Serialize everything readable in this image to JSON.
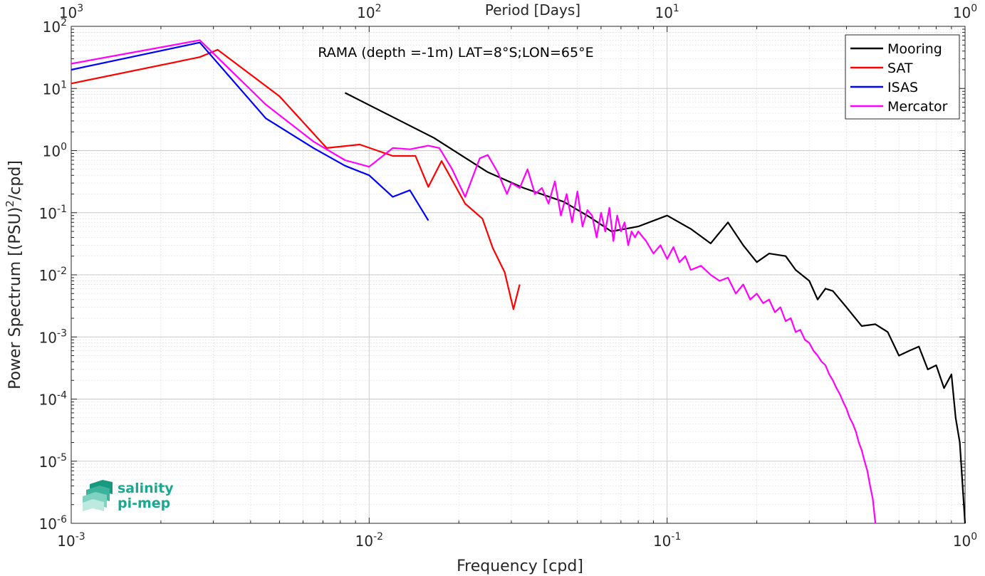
{
  "chart_data": {
    "type": "line",
    "title": "RAMA (depth =-1m) LAT=8°S;LON=65°E",
    "xlabel": "Frequency [cpd]",
    "ylabel_main": "Power Spectrum [(PSU)",
    "ylabel_sup": "2",
    "ylabel_tail": "/cpd]",
    "top_xlabel": "Period [Days]",
    "x_scale": "log",
    "y_scale": "log",
    "xlim": [
      0.001,
      1
    ],
    "ylim": [
      1e-06,
      100
    ],
    "grid": true,
    "legend_position": "top-right",
    "x_ticks": [
      {
        "v": 0.001,
        "base": "10",
        "exp": "-3"
      },
      {
        "v": 0.01,
        "base": "10",
        "exp": "-2"
      },
      {
        "v": 0.1,
        "base": "10",
        "exp": "-1"
      },
      {
        "v": 1,
        "base": "10",
        "exp": "0"
      }
    ],
    "y_ticks": [
      {
        "v": 100,
        "base": "10",
        "exp": "2"
      },
      {
        "v": 10,
        "base": "10",
        "exp": "1"
      },
      {
        "v": 1,
        "base": "10",
        "exp": "0"
      },
      {
        "v": 0.1,
        "base": "10",
        "exp": "-1"
      },
      {
        "v": 0.01,
        "base": "10",
        "exp": "-2"
      },
      {
        "v": 0.001,
        "base": "10",
        "exp": "-3"
      },
      {
        "v": 0.0001,
        "base": "10",
        "exp": "-4"
      },
      {
        "v": 1e-05,
        "base": "10",
        "exp": "-5"
      },
      {
        "v": 1e-06,
        "base": "10",
        "exp": "-6"
      }
    ],
    "top_ticks": [
      {
        "v": 0.001,
        "base": "10",
        "exp": "3"
      },
      {
        "v": 0.01,
        "base": "10",
        "exp": "2"
      },
      {
        "v": 0.1,
        "base": "10",
        "exp": "1"
      },
      {
        "v": 1,
        "base": "10",
        "exp": "0"
      }
    ],
    "series": [
      {
        "name": "Mooring",
        "color": "#000000",
        "x": [
          0.0083,
          0.0165,
          0.025,
          0.033,
          0.045,
          0.055,
          0.065,
          0.08,
          0.1,
          0.12,
          0.14,
          0.16,
          0.18,
          0.2,
          0.22,
          0.25,
          0.27,
          0.3,
          0.32,
          0.34,
          0.36,
          0.4,
          0.45,
          0.5,
          0.55,
          0.6,
          0.65,
          0.7,
          0.75,
          0.8,
          0.85,
          0.9,
          0.93,
          0.96,
          1.0
        ],
        "y": [
          8.5,
          1.6,
          0.45,
          0.25,
          0.15,
          0.085,
          0.05,
          0.06,
          0.09,
          0.055,
          0.032,
          0.07,
          0.03,
          0.016,
          0.022,
          0.02,
          0.012,
          0.008,
          0.004,
          0.006,
          0.0055,
          0.003,
          0.0015,
          0.0016,
          0.0012,
          0.0005,
          0.0006,
          0.0007,
          0.0003,
          0.00035,
          0.00015,
          0.00025,
          5e-05,
          2e-05,
          1e-06
        ]
      },
      {
        "name": "SAT",
        "color": "#ff0000",
        "x": [
          0.001,
          0.0027,
          0.0031,
          0.005,
          0.0072,
          0.0093,
          0.012,
          0.0143,
          0.0158,
          0.0175,
          0.021,
          0.024,
          0.026,
          0.0285,
          0.0305,
          0.032
        ],
        "y": [
          12,
          32,
          42,
          7.5,
          1.1,
          1.25,
          0.82,
          0.82,
          0.26,
          0.68,
          0.14,
          0.08,
          0.027,
          0.011,
          0.0028,
          0.007
        ]
      },
      {
        "name": "ISAS",
        "color": "#0000ff",
        "x": [
          0.001,
          0.0027,
          0.0045,
          0.0065,
          0.0083,
          0.01,
          0.012,
          0.0137,
          0.0158
        ],
        "y": [
          20,
          55,
          3.3,
          1.1,
          0.57,
          0.4,
          0.18,
          0.23,
          0.075
        ]
      },
      {
        "name": "Mercator",
        "color": "#ff00ff",
        "x": [
          0.001,
          0.0027,
          0.0045,
          0.0065,
          0.0083,
          0.01,
          0.012,
          0.0137,
          0.0158,
          0.0172,
          0.019,
          0.021,
          0.0235,
          0.025,
          0.027,
          0.029,
          0.03,
          0.032,
          0.034,
          0.036,
          0.038,
          0.04,
          0.042,
          0.044,
          0.046,
          0.048,
          0.05,
          0.052,
          0.054,
          0.056,
          0.058,
          0.06,
          0.062,
          0.064,
          0.066,
          0.068,
          0.07,
          0.072,
          0.074,
          0.076,
          0.078,
          0.08,
          0.085,
          0.09,
          0.095,
          0.1,
          0.105,
          0.11,
          0.115,
          0.12,
          0.13,
          0.14,
          0.15,
          0.16,
          0.17,
          0.18,
          0.19,
          0.2,
          0.21,
          0.22,
          0.23,
          0.24,
          0.25,
          0.26,
          0.27,
          0.28,
          0.29,
          0.3,
          0.31,
          0.32,
          0.33,
          0.34,
          0.35,
          0.36,
          0.37,
          0.38,
          0.39,
          0.4,
          0.41,
          0.42,
          0.43,
          0.44,
          0.45,
          0.46,
          0.47,
          0.48,
          0.49,
          0.5
        ],
        "y": [
          25,
          60,
          5.5,
          1.4,
          0.7,
          0.55,
          1.1,
          1.05,
          1.2,
          1.1,
          0.5,
          0.18,
          0.75,
          0.85,
          0.45,
          0.2,
          0.3,
          0.25,
          0.5,
          0.2,
          0.25,
          0.14,
          0.32,
          0.09,
          0.2,
          0.07,
          0.22,
          0.06,
          0.11,
          0.09,
          0.04,
          0.1,
          0.05,
          0.12,
          0.035,
          0.09,
          0.05,
          0.07,
          0.03,
          0.05,
          0.04,
          0.05,
          0.035,
          0.022,
          0.03,
          0.018,
          0.028,
          0.016,
          0.02,
          0.012,
          0.014,
          0.01,
          0.008,
          0.009,
          0.005,
          0.007,
          0.004,
          0.005,
          0.0035,
          0.004,
          0.0025,
          0.003,
          0.0018,
          0.002,
          0.0012,
          0.0013,
          0.0009,
          0.0008,
          0.0006,
          0.0005,
          0.0004,
          0.00035,
          0.00025,
          0.0002,
          0.00015,
          0.00012,
          9e-05,
          7e-05,
          5e-05,
          4e-05,
          3e-05,
          2e-05,
          1.5e-05,
          1e-05,
          7e-06,
          4e-06,
          2.5e-06,
          1e-06
        ]
      }
    ]
  },
  "logo": {
    "line1": "salinity",
    "line2": "pi-mep",
    "color": "#1aa892"
  }
}
